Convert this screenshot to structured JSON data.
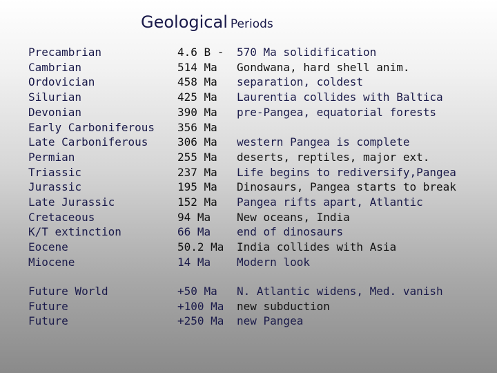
{
  "title": {
    "main": "Geological",
    "sub": "Periods"
  },
  "rows": [
    {
      "period": "Precambrian",
      "age": "4.6 B -",
      "event": "570 Ma solidification",
      "c2": "dark",
      "c3": "navy"
    },
    {
      "period": "Cambrian",
      "age": "514 Ma",
      "event": "Gondwana, hard shell anim.",
      "c2": "dark",
      "c3": "dark"
    },
    {
      "period": "Ordovician",
      "age": "458 Ma",
      "event": "separation, coldest",
      "c2": "dark",
      "c3": "navy"
    },
    {
      "period": "Silurian",
      "age": "425 Ma",
      "event": "Laurentia collides with Baltica",
      "c2": "dark",
      "c3": "navy"
    },
    {
      "period": "Devonian",
      "age": "390 Ma",
      "event": "pre-Pangea, equatorial forests",
      "c2": "dark",
      "c3": "navy"
    },
    {
      "period": "Early Carboniferous",
      "age": "356 Ma",
      "event": "",
      "c2": "dark",
      "c3": "navy"
    },
    {
      "period": "Late Carboniferous",
      "age": "306 Ma",
      "event": "western Pangea is complete",
      "c2": "dark",
      "c3": "navy"
    },
    {
      "period": "Permian",
      "age": "255 Ma",
      "event": "deserts, reptiles, major ext.",
      "c2": "dark",
      "c3": "dark"
    },
    {
      "period": "Triassic",
      "age": "237 Ma",
      "event": "Life begins to rediversify,Pangea",
      "c2": "dark",
      "c3": "navy"
    },
    {
      "period": "Jurassic",
      "age": "195 Ma",
      "event": "Dinosaurs, Pangea starts to break",
      "c2": "dark",
      "c3": "dark"
    },
    {
      "period": "Late Jurassic",
      "age": "152 Ma",
      "event": "Pangea rifts apart, Atlantic",
      "c2": "dark",
      "c3": "navy"
    },
    {
      "period": "Cretaceous",
      "age": "94 Ma",
      "event": "New oceans, India",
      "c2": "dark",
      "c3": "dark"
    },
    {
      "period": "K/T extinction",
      "age": "66 Ma",
      "event": "end of dinosaurs",
      "c2": "navy",
      "c3": "navy"
    },
    {
      "period": "Eocene",
      "age": "50.2 Ma",
      "event": "India collides with Asia",
      "c2": "dark",
      "c3": "dark"
    },
    {
      "period": "Miocene",
      "age": "14 Ma",
      "event": "Modern look",
      "c2": "navy",
      "c3": "navy"
    }
  ],
  "future_rows": [
    {
      "period": "Future World",
      "age": "+50 Ma",
      "event": "N. Atlantic widens, Med. vanish",
      "c2": "navy",
      "c3": "navy"
    },
    {
      "period": "Future",
      "age": "+100 Ma",
      "event": "new subduction",
      "c2": "navy",
      "c3": "dark"
    },
    {
      "period": "Future",
      "age": "+250 Ma",
      "event": "new Pangea",
      "c2": "navy",
      "c3": "navy"
    }
  ]
}
